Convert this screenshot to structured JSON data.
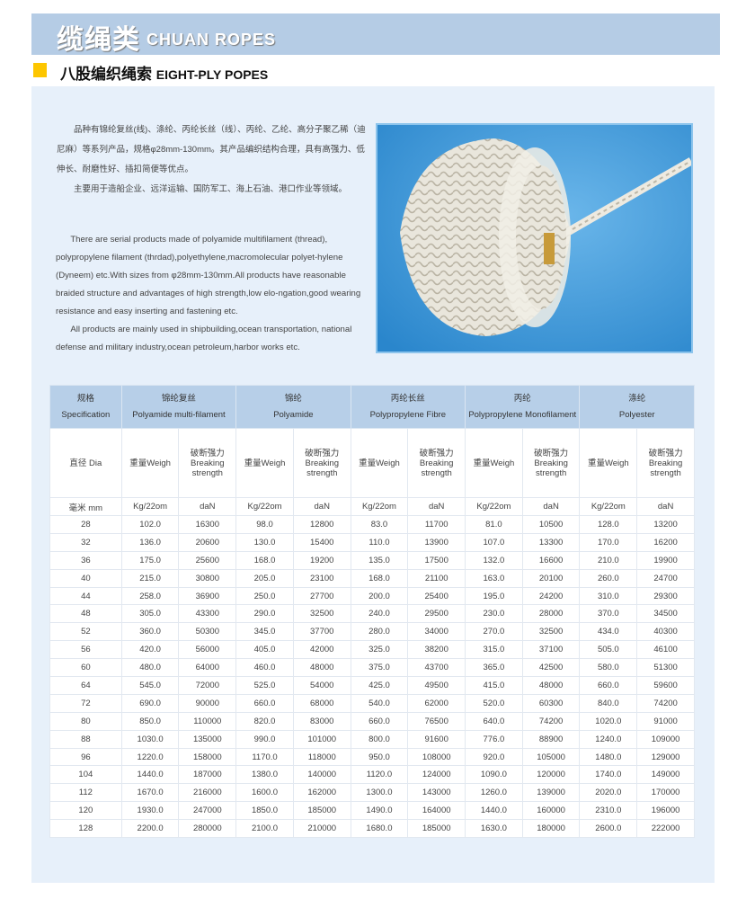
{
  "banner": {
    "title_cn": "缆绳类",
    "title_en": "CHUAN ROPES",
    "accent": "#b5cce5"
  },
  "section": {
    "title_cn": "八股编织绳索",
    "title_en": "EIGHT-PLY POPES",
    "marker_color": "#fdc600"
  },
  "intro_cn": [
    "品种有锦纶复丝(线)、涤纶、丙纶长丝（线）、丙纶、乙纶、高分子聚乙稀（迪尼麻）等系列产品，规格φ28mm-130mm。其产品编织结构合理，具有高强力、低伸长、耐磨性好、插扣简便等优点。",
    "主要用于造船企业、远洋运输、国防军工、海上石油、港口作业等领域。"
  ],
  "intro_en": [
    "There are serial products made of polyamide multifilament (thread), polypropylene filament (thrdad),polyethylene,macromolecular polyet-hylene (Dyneem) etc.With sizes from φ28mm-130mm.All products have reasonable braided structure and advantages of high strength,low elo-ngation,good wearing resistance and easy  inserting and fastening etc.",
    "All products are mainly used in shipbuilding,ocean transportation, national defense and military industry,ocean petroleum,harbor works etc."
  ],
  "photo": {
    "subject": "rope-coil"
  },
  "table": {
    "spec_header": {
      "cn": "规格",
      "en": "Specification"
    },
    "materials": [
      {
        "cn": "锦纶复丝",
        "en": "Polyamide multi-filament"
      },
      {
        "cn": "锦纶",
        "en": "Polyamide"
      },
      {
        "cn": "丙纶长丝",
        "en": "Polypropylene Fibre"
      },
      {
        "cn": "丙纶",
        "en": "Polypropylene Monofilament"
      },
      {
        "cn": "涤纶",
        "en": "Polyester"
      }
    ],
    "dia_label": "直径 Dia",
    "weight_label": "重量Weigh",
    "break_label": {
      "cn": "破断强力",
      "en1": "Breaking",
      "en2": "strength"
    },
    "unit_dia": "毫米 mm",
    "unit_weight": "Kg/22om",
    "unit_break": "daN",
    "rows": [
      [
        "28",
        "102.0",
        "16300",
        "98.0",
        "12800",
        "83.0",
        "11700",
        "81.0",
        "10500",
        "128.0",
        "13200"
      ],
      [
        "32",
        "136.0",
        "20600",
        "130.0",
        "15400",
        "110.0",
        "13900",
        "107.0",
        "13300",
        "170.0",
        "16200"
      ],
      [
        "36",
        "175.0",
        "25600",
        "168.0",
        "19200",
        "135.0",
        "17500",
        "132.0",
        "16600",
        "210.0",
        "19900"
      ],
      [
        "40",
        "215.0",
        "30800",
        "205.0",
        "23100",
        "168.0",
        "21100",
        "163.0",
        "20100",
        "260.0",
        "24700"
      ],
      [
        "44",
        "258.0",
        "36900",
        "250.0",
        "27700",
        "200.0",
        "25400",
        "195.0",
        "24200",
        "310.0",
        "29300"
      ],
      [
        "48",
        "305.0",
        "43300",
        "290.0",
        "32500",
        "240.0",
        "29500",
        "230.0",
        "28000",
        "370.0",
        "34500"
      ],
      [
        "52",
        "360.0",
        "50300",
        "345.0",
        "37700",
        "280.0",
        "34000",
        "270.0",
        "32500",
        "434.0",
        "40300"
      ],
      [
        "56",
        "420.0",
        "56000",
        "405.0",
        "42000",
        "325.0",
        "38200",
        "315.0",
        "37100",
        "505.0",
        "46100"
      ],
      [
        "60",
        "480.0",
        "64000",
        "460.0",
        "48000",
        "375.0",
        "43700",
        "365.0",
        "42500",
        "580.0",
        "51300"
      ],
      [
        "64",
        "545.0",
        "72000",
        "525.0",
        "54000",
        "425.0",
        "49500",
        "415.0",
        "48000",
        "660.0",
        "59600"
      ],
      [
        "72",
        "690.0",
        "90000",
        "660.0",
        "68000",
        "540.0",
        "62000",
        "520.0",
        "60300",
        "840.0",
        "74200"
      ],
      [
        "80",
        "850.0",
        "110000",
        "820.0",
        "83000",
        "660.0",
        "76500",
        "640.0",
        "74200",
        "1020.0",
        "91000"
      ],
      [
        "88",
        "1030.0",
        "135000",
        "990.0",
        "101000",
        "800.0",
        "91600",
        "776.0",
        "88900",
        "1240.0",
        "109000"
      ],
      [
        "96",
        "1220.0",
        "158000",
        "1170.0",
        "118000",
        "950.0",
        "108000",
        "920.0",
        "105000",
        "1480.0",
        "129000"
      ],
      [
        "104",
        "1440.0",
        "187000",
        "1380.0",
        "140000",
        "1120.0",
        "124000",
        "1090.0",
        "120000",
        "1740.0",
        "149000"
      ],
      [
        "112",
        "1670.0",
        "216000",
        "1600.0",
        "162000",
        "1300.0",
        "143000",
        "1260.0",
        "139000",
        "2020.0",
        "170000"
      ],
      [
        "120",
        "1930.0",
        "247000",
        "1850.0",
        "185000",
        "1490.0",
        "164000",
        "1440.0",
        "160000",
        "2310.0",
        "196000"
      ],
      [
        "128",
        "2200.0",
        "280000",
        "2100.0",
        "210000",
        "1680.0",
        "185000",
        "1630.0",
        "180000",
        "2600.0",
        "222000"
      ]
    ]
  }
}
